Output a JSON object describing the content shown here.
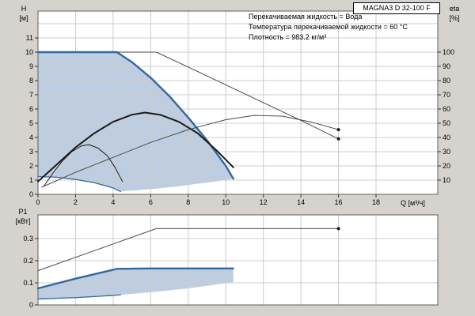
{
  "header": {
    "title": "MAGNA3 D 32-100 F"
  },
  "annotations": [
    "Перекачиваемая жидкость = Вода",
    "Температура перекачиваемой жидкости = 60 °C",
    "Плотность = 983.2 кг/м³"
  ],
  "labels": {
    "h_axis_symbol": "H",
    "h_axis_unit": "[м]",
    "eta_axis_symbol": "eta",
    "eta_axis_unit": "[%]",
    "p1_axis_symbol": "P1",
    "p1_axis_unit": "[кВт]",
    "q_axis": "Q [м³/ч]"
  },
  "colors": {
    "background": "#d6d3ce",
    "plot_background": "#ffffff",
    "grid": "#cccccc",
    "plot_border": "#5f5f5f",
    "tick": "#333333",
    "accent_blue": "#33689b",
    "fill_blue": "#b3c5da",
    "curve_black": "#1a1a1a",
    "curve_gray": "#4a4a4a"
  },
  "chart_data": [
    {
      "type": "line",
      "title": "Pump head curves H/Q",
      "xlabel": "Q [м³/ч]",
      "ylabel": "H [м]",
      "y2label": "eta [%]",
      "xlim": [
        0,
        21.3
      ],
      "ylim": [
        0,
        12.9
      ],
      "y2lim": [
        0,
        129
      ],
      "grid": true,
      "x_ticks": [
        0,
        2,
        4,
        6,
        8,
        10,
        12,
        14,
        16,
        18
      ],
      "y_ticks": [
        0,
        1,
        2,
        3,
        4,
        5,
        6,
        7,
        8,
        9,
        10,
        11
      ],
      "y2_ticks": [
        100,
        90,
        80,
        70,
        60,
        50,
        40,
        30,
        20,
        10
      ],
      "x_grid": [
        2,
        4,
        6,
        8,
        10,
        12,
        14,
        16,
        18
      ],
      "y_grid": [
        1,
        2,
        3,
        4,
        5,
        6,
        7,
        8,
        9,
        10,
        11,
        12
      ],
      "series": [
        {
          "name": "duty-range-area",
          "kind": "area",
          "color": "fill_blue",
          "points": [
            [
              0,
              10
            ],
            [
              4.2,
              10
            ],
            [
              5,
              9.3
            ],
            [
              6,
              8.2
            ],
            [
              7,
              6.9
            ],
            [
              8,
              5.4
            ],
            [
              9,
              3.8
            ],
            [
              10,
              2.0
            ],
            [
              10.4,
              1.1
            ],
            [
              9.5,
              0.92
            ],
            [
              8.5,
              0.74
            ],
            [
              7.5,
              0.57
            ],
            [
              6.5,
              0.43
            ],
            [
              5.5,
              0.31
            ],
            [
              4.4,
              0.2
            ],
            [
              4,
              0.45
            ],
            [
              3,
              0.82
            ],
            [
              2,
              1.05
            ],
            [
              1,
              1.2
            ],
            [
              0,
              1.25
            ]
          ]
        },
        {
          "name": "max-speed-curve",
          "kind": "line",
          "color": "accent_blue",
          "width": 2.4,
          "points": [
            [
              0,
              10
            ],
            [
              4.2,
              10
            ],
            [
              5,
              9.3
            ],
            [
              6,
              8.2
            ],
            [
              7,
              6.9
            ],
            [
              8,
              5.4
            ],
            [
              9,
              3.8
            ],
            [
              10,
              2.0
            ],
            [
              10.4,
              1.1
            ]
          ]
        },
        {
          "name": "min-speed-curve",
          "kind": "line",
          "color": "accent_blue",
          "width": 1.3,
          "points": [
            [
              0,
              1.25
            ],
            [
              1,
              1.2
            ],
            [
              2,
              1.05
            ],
            [
              3,
              0.82
            ],
            [
              4,
              0.45
            ],
            [
              4.4,
              0.2
            ]
          ]
        },
        {
          "name": "mains-max-curve",
          "kind": "line",
          "color": "curve_gray",
          "width": 1,
          "points": [
            [
              4.2,
              10
            ],
            [
              6.3,
              10
            ],
            [
              8,
              8.95
            ],
            [
              10,
              7.7
            ],
            [
              12,
              6.45
            ],
            [
              14,
              5.2
            ],
            [
              16,
              3.9
            ]
          ]
        },
        {
          "name": "eta-duty-curve",
          "kind": "line",
          "color": "curve_black",
          "width": 2,
          "points": [
            [
              0,
              0.9
            ],
            [
              1,
              2.1
            ],
            [
              2,
              3.3
            ],
            [
              3,
              4.3
            ],
            [
              4,
              5.1
            ],
            [
              5,
              5.6
            ],
            [
              5.7,
              5.75
            ],
            [
              6.5,
              5.6
            ],
            [
              7.5,
              5.1
            ],
            [
              8.5,
              4.3
            ],
            [
              9.5,
              3.1
            ],
            [
              10.4,
              1.9
            ]
          ]
        },
        {
          "name": "eta-single-curve",
          "kind": "line",
          "color": "curve_black",
          "width": 1,
          "points": [
            [
              0.3,
              0.55
            ],
            [
              0.8,
              1.5
            ],
            [
              1.3,
              2.35
            ],
            [
              1.8,
              3.0
            ],
            [
              2.3,
              3.4
            ],
            [
              2.7,
              3.5
            ],
            [
              3.2,
              3.25
            ],
            [
              3.7,
              2.7
            ],
            [
              4.1,
              1.9
            ],
            [
              4.5,
              0.9
            ]
          ]
        },
        {
          "name": "eta-full-curve",
          "kind": "line",
          "color": "curve_gray",
          "width": 1,
          "points": [
            [
              0.2,
              0.5
            ],
            [
              2,
              1.55
            ],
            [
              4,
              2.6
            ],
            [
              6,
              3.65
            ],
            [
              8,
              4.55
            ],
            [
              10,
              5.25
            ],
            [
              11.5,
              5.55
            ],
            [
              13,
              5.5
            ],
            [
              14.5,
              5.1
            ],
            [
              16,
              4.55
            ]
          ]
        }
      ],
      "markers": [
        [
          16,
          3.9
        ],
        [
          16,
          4.55
        ]
      ]
    },
    {
      "type": "line",
      "title": "Power curves P1/Q",
      "xlabel": "Q [м³/ч]",
      "ylabel": "P1 [кВт]",
      "xlim": [
        0,
        21.3
      ],
      "ylim": [
        0,
        0.407
      ],
      "grid": true,
      "x_ticks": [],
      "y_ticks": [
        0,
        0.1,
        0.2,
        0.3
      ],
      "x_grid": [
        2,
        4,
        6,
        8,
        10,
        12,
        14,
        16,
        18
      ],
      "y_grid": [
        0.1,
        0.2,
        0.3
      ],
      "series": [
        {
          "name": "power-duty-area",
          "kind": "area",
          "color": "fill_blue",
          "points": [
            [
              0,
              0.075
            ],
            [
              2,
              0.119
            ],
            [
              4.2,
              0.163
            ],
            [
              10.4,
              0.165
            ],
            [
              10.4,
              0.103
            ],
            [
              8,
              0.075
            ],
            [
              6,
              0.057
            ],
            [
              4,
              0.043
            ],
            [
              2,
              0.033
            ],
            [
              0,
              0.027
            ]
          ]
        },
        {
          "name": "power-max-curve",
          "kind": "line",
          "color": "curve_gray",
          "width": 1,
          "points": [
            [
              0,
              0.155
            ],
            [
              6.3,
              0.345
            ],
            [
              16,
              0.345
            ]
          ]
        },
        {
          "name": "power-duty-curve",
          "kind": "line",
          "color": "accent_blue",
          "width": 2.4,
          "points": [
            [
              0,
              0.075
            ],
            [
              2,
              0.119
            ],
            [
              4.2,
              0.163
            ],
            [
              6,
              0.165
            ],
            [
              10.4,
              0.165
            ]
          ]
        },
        {
          "name": "power-min-curve",
          "kind": "line",
          "color": "accent_blue",
          "width": 1.3,
          "points": [
            [
              0,
              0.027
            ],
            [
              2,
              0.033
            ],
            [
              4,
              0.043
            ],
            [
              4.4,
              0.046
            ]
          ]
        }
      ],
      "markers": [
        [
          16,
          0.345
        ]
      ]
    }
  ]
}
